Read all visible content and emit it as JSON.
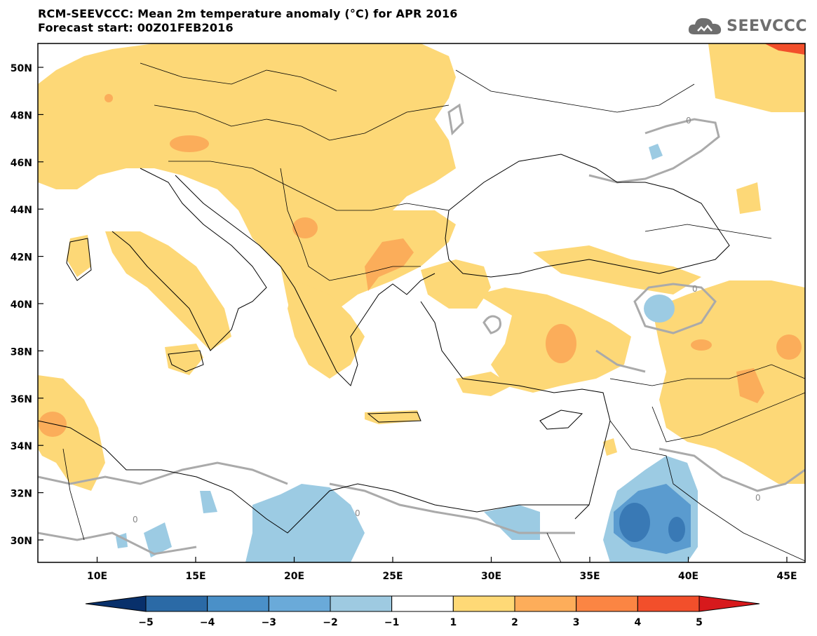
{
  "header": {
    "title": "RCM-SEEVCCC: Mean 2m temperature anomaly (°C) for APR 2016",
    "subtitle": "Forecast start: 00Z01FEB2016"
  },
  "logo": {
    "text": "SEEVCCC",
    "icon": "cloud-icon"
  },
  "map": {
    "lat_ticks": [
      "50N",
      "48N",
      "46N",
      "44N",
      "42N",
      "40N",
      "38N",
      "36N",
      "34N",
      "32N",
      "30N"
    ],
    "lon_ticks": [
      "10E",
      "15E",
      "20E",
      "25E",
      "30E",
      "35E",
      "40E",
      "45E"
    ],
    "contour_label": "0",
    "colors": {
      "ocean": "#ffffff",
      "warm1": "#fdd877",
      "warm2": "#fbad5a",
      "cool1": "#9ccbe3",
      "cool2": "#6aa9d5",
      "cool3": "#3f86c1",
      "contour": "#aaaaaa",
      "coast": "#000000"
    }
  },
  "colorbar": {
    "labels": [
      "-5",
      "-4",
      "-3",
      "-2",
      "-1",
      "1",
      "2",
      "3",
      "4",
      "5"
    ],
    "colors": [
      "#08306b",
      "#2b6aa6",
      "#4a90c8",
      "#6aaad9",
      "#9ecae1",
      "#ffffff",
      "#fed976",
      "#fdad5a",
      "#fb8543",
      "#f24f2b",
      "#d7191c"
    ]
  }
}
